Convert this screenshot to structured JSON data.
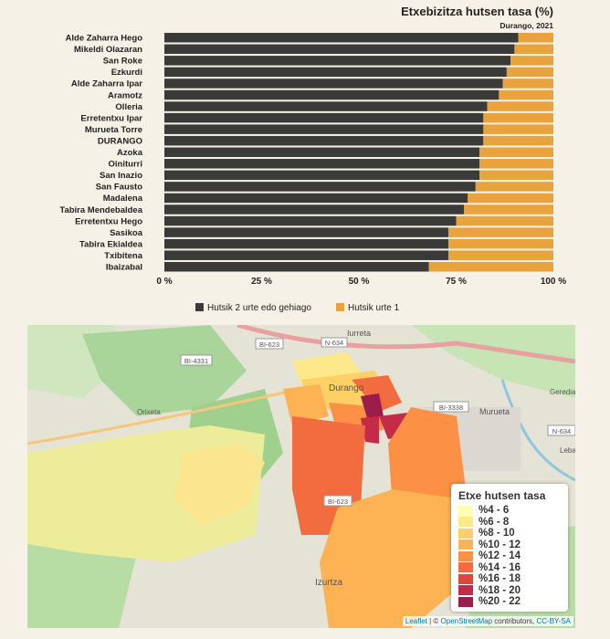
{
  "chart_data": {
    "type": "bar",
    "stacked": true,
    "orientation": "horizontal",
    "title": "Etxebizitza hutsen tasa (%)",
    "subtitle": "Durango, 2021",
    "categories": [
      "Alde Zaharra Hego",
      "Mikeldi Olazaran",
      "San Roke",
      "Ezkurdi",
      "Alde Zaharra Ipar",
      "Aramotz",
      "Olleria",
      "Erretentxu Ipar",
      "Murueta Torre",
      "DURANGO",
      "Azoka",
      "Oiniturri",
      "San Inazio",
      "San Fausto",
      "Madalena",
      "Tabira Mendebaldea",
      "Erretentxu Hego",
      "Sasikoa",
      "Tabira Ekialdea",
      "Txibitena",
      "Ibaizabal"
    ],
    "series": [
      {
        "name": "Hutsik 2 urte edo gehiago",
        "color": "#3a3a38",
        "values": [
          91,
          90,
          89,
          88,
          87,
          86,
          83,
          82,
          82,
          82,
          81,
          81,
          81,
          80,
          78,
          77,
          75,
          73,
          73,
          73,
          68
        ]
      },
      {
        "name": "Hutsik urte 1",
        "color": "#e8a33c",
        "values": [
          9,
          10,
          11,
          12,
          13,
          14,
          17,
          18,
          18,
          18,
          19,
          19,
          19,
          20,
          22,
          23,
          25,
          27,
          27,
          27,
          32
        ]
      }
    ],
    "xlim": [
      0,
      100
    ],
    "x_ticks": [
      "0 %",
      "25 %",
      "50 %",
      "75 %",
      "100 %"
    ],
    "legend_position": "bottom"
  },
  "map": {
    "legend_title": "Etxe hutsen tasa",
    "legend": [
      {
        "label": "%4 - 6",
        "color": "#ffffb2"
      },
      {
        "label": "%6 - 8",
        "color": "#fee98a"
      },
      {
        "label": "%8 - 10",
        "color": "#fed065"
      },
      {
        "label": "%10 - 12",
        "color": "#fdb253"
      },
      {
        "label": "%12 - 14",
        "color": "#fc9145"
      },
      {
        "label": "%14 - 16",
        "color": "#f26c3f"
      },
      {
        "label": "%16 - 18",
        "color": "#e04640"
      },
      {
        "label": "%18 - 20",
        "color": "#c52a47"
      },
      {
        "label": "%20 - 22",
        "color": "#9a1d4a"
      }
    ],
    "place_labels": [
      "Iurreta",
      "Durango",
      "Murueta",
      "Izurtza",
      "Gerediaga",
      "Leba",
      "Orixeta"
    ],
    "road_labels": [
      "BI-623",
      "N-634",
      "BI-4331",
      "BI-3338",
      "N-634",
      "BI-623"
    ],
    "attribution": {
      "leaflet": "Leaflet",
      "sep": " | © ",
      "osm": "OpenStreetMap",
      "mid": " contributors, ",
      "license": "CC-BY-SA"
    }
  }
}
